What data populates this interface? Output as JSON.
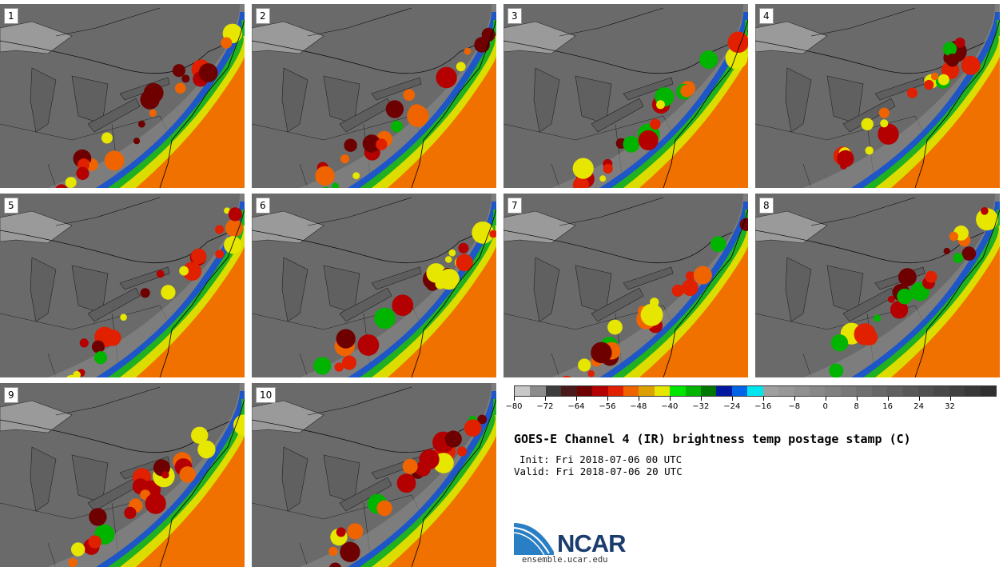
{
  "panels": [
    {
      "label": "1"
    },
    {
      "label": "2"
    },
    {
      "label": "3"
    },
    {
      "label": "4"
    },
    {
      "label": "5"
    },
    {
      "label": "6"
    },
    {
      "label": "7"
    },
    {
      "label": "8"
    },
    {
      "label": "9"
    },
    {
      "label": "10"
    }
  ],
  "colorbar": {
    "colors": [
      "#c8c8c8",
      "#8c8c8c",
      "#3c3c3c",
      "#4a1a1a",
      "#6e0000",
      "#b40000",
      "#e12000",
      "#f06400",
      "#dca000",
      "#e6e600",
      "#00e600",
      "#00b400",
      "#007800",
      "#0018a0",
      "#0064e6",
      "#00e6f0",
      "#a0a0a0",
      "#989898",
      "#909090",
      "#888888",
      "#808080",
      "#787878",
      "#707070",
      "#686868",
      "#606060",
      "#585858",
      "#505050",
      "#484848",
      "#404040",
      "#383838",
      "#303030"
    ],
    "ticks": [
      "−80",
      "−72",
      "−64",
      "−56",
      "−48",
      "−40",
      "−32",
      "−24",
      "−16",
      "−8",
      "0",
      "8",
      "16",
      "24",
      "32"
    ]
  },
  "title": "GOES-E Channel 4 (IR) brightness temp postage stamp (C)",
  "init": "Init: Fri 2018-07-06 00 UTC",
  "valid": "Valid: Fri 2018-07-06 20 UTC",
  "logo": "NCAR",
  "site": "ensemble.ucar.edu"
}
